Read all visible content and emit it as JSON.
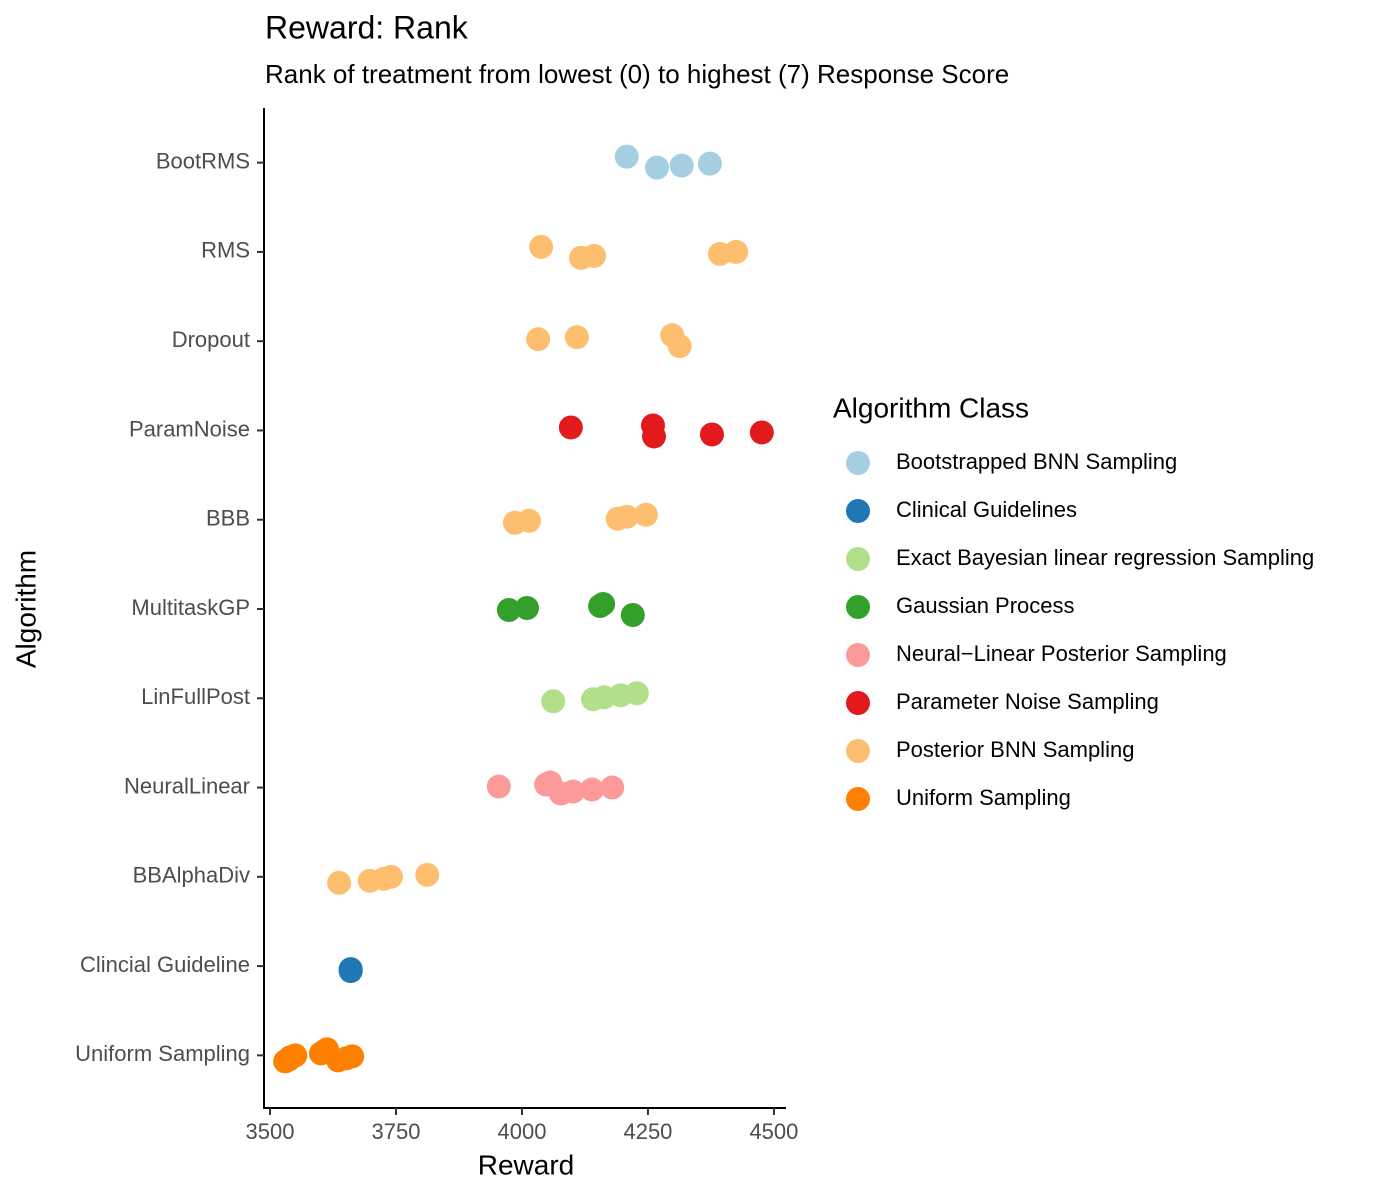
{
  "chart_data": {
    "type": "scatter",
    "title": "Reward: Rank",
    "subtitle": "Rank of treatment from lowest (0) to highest (7) Response Score",
    "x_label": "Reward",
    "y_label": "Algorithm",
    "legend_title": "Algorithm Class",
    "legend_position": "right",
    "categories": [
      "BootRMS",
      "RMS",
      "Dropout",
      "ParamNoise",
      "BBB",
      "MultitaskGP",
      "LinFullPost",
      "NeuralLinear",
      "BBAlphaDiv",
      "Clincial Guideline",
      "Uniform Sampling"
    ],
    "xlim": [
      3490,
      4522
    ],
    "xticks": [
      3500,
      3750,
      4000,
      4250,
      4500
    ],
    "series": [
      {
        "name": "Bootstrapped BNN Sampling",
        "color": "#A6CEE3",
        "y": [
          "BootRMS",
          "BootRMS",
          "BootRMS",
          "BootRMS"
        ],
        "values": [
          4208,
          4268,
          4317,
          4373
        ]
      },
      {
        "name": "Clinical Guidelines",
        "color": "#1F78B4",
        "y": [
          "Clincial Guideline",
          "Clincial Guideline"
        ],
        "values": [
          3660,
          3660
        ]
      },
      {
        "name": "Exact Bayesian linear regression Sampling",
        "color": "#B2DF8A",
        "y": [
          "LinFullPost",
          "LinFullPost",
          "LinFullPost",
          "LinFullPost",
          "LinFullPost"
        ],
        "values": [
          4062,
          4141,
          4163,
          4196,
          4228
        ]
      },
      {
        "name": "Gaussian Process",
        "color": "#33A02C",
        "y": [
          "MultitaskGP",
          "MultitaskGP",
          "MultitaskGP",
          "MultitaskGP",
          "MultitaskGP"
        ],
        "values": [
          3974,
          4010,
          4155,
          4161,
          4220
        ]
      },
      {
        "name": "Neural−Linear Posterior Sampling",
        "color": "#FB9A99",
        "y": [
          "NeuralLinear",
          "NeuralLinear",
          "NeuralLinear",
          "NeuralLinear",
          "NeuralLinear",
          "NeuralLinear",
          "NeuralLinear"
        ],
        "values": [
          3954,
          4048,
          4056,
          4077,
          4101,
          4139,
          4179
        ]
      },
      {
        "name": "Parameter Noise Sampling",
        "color": "#E31A1C",
        "y": [
          "ParamNoise",
          "ParamNoise",
          "ParamNoise",
          "ParamNoise",
          "ParamNoise"
        ],
        "values": [
          4097,
          4260,
          4262,
          4377,
          4476
        ]
      },
      {
        "name": "Posterior BNN Sampling",
        "color": "#FDBF6F",
        "y": [
          "RMS",
          "RMS",
          "RMS",
          "RMS",
          "RMS",
          "Dropout",
          "Dropout",
          "Dropout",
          "Dropout",
          "BBB",
          "BBB",
          "BBB",
          "BBB",
          "BBB",
          "BBAlphaDiv",
          "BBAlphaDiv",
          "BBAlphaDiv",
          "BBAlphaDiv",
          "BBAlphaDiv"
        ],
        "values": [
          4038,
          4117,
          4143,
          4393,
          4425,
          4032,
          4109,
          4298,
          4313,
          3986,
          4014,
          4190,
          4208,
          4246,
          3637,
          3698,
          3726,
          3740,
          3812
        ]
      },
      {
        "name": "Uniform Sampling",
        "color": "#FF7F00",
        "y": [
          "Uniform Sampling",
          "Uniform Sampling",
          "Uniform Sampling",
          "Uniform Sampling",
          "Uniform Sampling",
          "Uniform Sampling",
          "Uniform Sampling",
          "Uniform Sampling",
          "Uniform Sampling",
          "Uniform Sampling"
        ],
        "values": [
          3530,
          3538,
          3540,
          3550,
          3601,
          3607,
          3613,
          3635,
          3651,
          3663
        ]
      }
    ]
  }
}
